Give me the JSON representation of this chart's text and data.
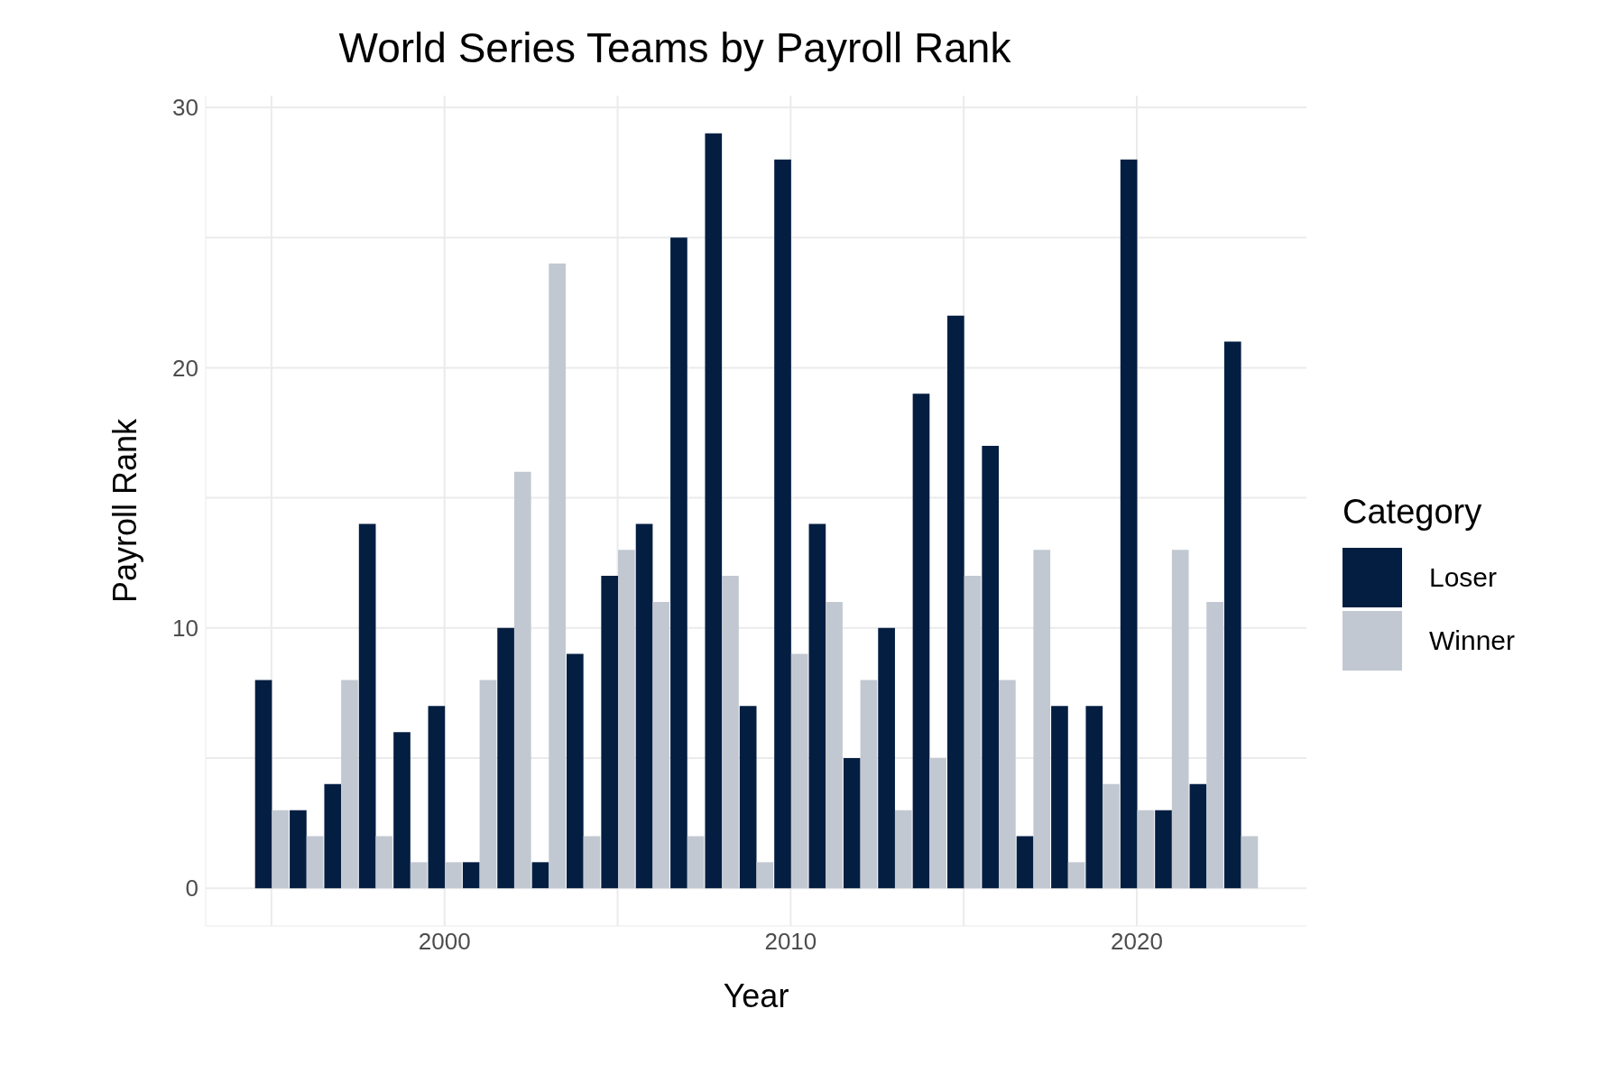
{
  "chart_data": {
    "type": "bar",
    "title": "World Series Teams by Payroll Rank",
    "xlabel": "Year",
    "ylabel": "Payroll Rank",
    "legend_title": "Category",
    "x": [
      1995,
      1996,
      1997,
      1998,
      1999,
      2000,
      2001,
      2002,
      2003,
      2004,
      2005,
      2006,
      2007,
      2008,
      2009,
      2010,
      2011,
      2012,
      2013,
      2014,
      2015,
      2016,
      2017,
      2018,
      2019,
      2020,
      2021,
      2022,
      2023
    ],
    "series": [
      {
        "name": "Loser",
        "color": "#041e42",
        "values": [
          8,
          3,
          4,
          14,
          6,
          7,
          1,
          10,
          1,
          9,
          12,
          14,
          25,
          29,
          7,
          28,
          14,
          5,
          10,
          19,
          22,
          17,
          2,
          7,
          7,
          28,
          3,
          4,
          21
        ]
      },
      {
        "name": "Winner",
        "color": "#c2c8d1",
        "values": [
          3,
          2,
          8,
          2,
          1,
          1,
          8,
          16,
          24,
          2,
          13,
          11,
          2,
          12,
          1,
          9,
          11,
          8,
          3,
          5,
          12,
          8,
          13,
          1,
          4,
          3,
          13,
          11,
          2
        ]
      }
    ],
    "xlim": [
      1993.1,
      2024.9
    ],
    "xticks": [
      {
        "value": 1995,
        "label": null
      },
      2000,
      {
        "value": 2005,
        "label": null
      },
      2010,
      {
        "value": 2015,
        "label": null
      },
      2020
    ],
    "ylim": [
      -1.45,
      30.45
    ],
    "yticks": [
      0,
      {
        "value": 5,
        "label": null
      },
      10,
      {
        "value": 15,
        "label": null
      },
      20,
      {
        "value": 25,
        "label": null
      },
      30
    ],
    "grid": true,
    "legend": "right"
  }
}
